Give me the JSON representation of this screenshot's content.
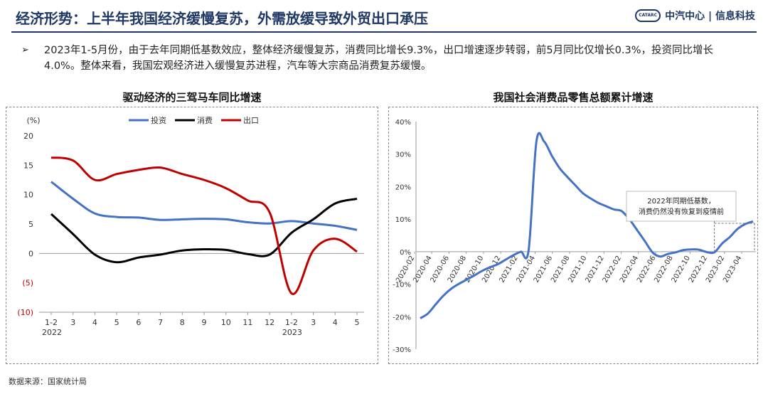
{
  "header": {
    "title": "经济形势：上半年我国经济缓慢复苏，外需放缓导致外贸出口承压",
    "brand": "中汽中心 | 信息科技",
    "logo_text": "CATARC"
  },
  "summary": {
    "bullet": "➢",
    "text": "2023年1-5月份，由于去年同期低基数效应，整体经济缓慢复苏，消费同比增长9.3%，出口增速逐步转弱，前5月同比仅增长0.3%，投资同比增长4.0%。整体来看，我国宏观经济进入缓慢复苏进程，汽车等大宗商品消费复苏缓慢。"
  },
  "source": "数据来源：国家统计局",
  "colors": {
    "investment": "#4472c4",
    "consumption": "#000000",
    "export": "#c00000",
    "retail": "#4472c4",
    "brand": "#1f3864"
  },
  "chart_data": [
    {
      "type": "line",
      "title": "驱动经济的三驾马车同比增速",
      "yunit": "(%)",
      "ylim": [
        -10,
        20
      ],
      "yticks": [
        20,
        15,
        10,
        5,
        0,
        -5,
        -10
      ],
      "ytick_labels": [
        "20",
        "15",
        "10",
        "5",
        "0",
        "(5)",
        "(10)"
      ],
      "categories": [
        "1-2",
        "3",
        "4",
        "5",
        "6",
        "7",
        "8",
        "9",
        "10",
        "11",
        "12",
        "1-2",
        "3",
        "4",
        "5"
      ],
      "year_labels": [
        {
          "index": 0,
          "label": "2022"
        },
        {
          "index": 11,
          "label": "2023"
        }
      ],
      "legend_position": "top",
      "grid": false,
      "series": [
        {
          "name": "投资",
          "values": [
            12.2,
            9.3,
            6.8,
            6.2,
            6.1,
            5.7,
            5.8,
            5.9,
            5.8,
            5.3,
            5.1,
            5.5,
            5.1,
            4.7,
            4.0
          ]
        },
        {
          "name": "消费",
          "values": [
            6.7,
            3.3,
            -0.2,
            -1.5,
            -0.7,
            -0.2,
            0.5,
            0.7,
            0.6,
            -0.1,
            -0.2,
            3.5,
            5.8,
            8.5,
            9.3
          ]
        },
        {
          "name": "出口",
          "values": [
            16.3,
            15.8,
            12.5,
            13.5,
            14.2,
            14.6,
            13.5,
            12.5,
            11.1,
            9.0,
            7.0,
            -6.8,
            0.5,
            2.5,
            0.3
          ]
        }
      ]
    },
    {
      "type": "line",
      "title": "我国社会消费品零售总额累计增速",
      "ylim": [
        -30,
        40
      ],
      "yticks": [
        40,
        30,
        20,
        10,
        0,
        -10,
        -20,
        -30
      ],
      "ytick_labels": [
        "40%",
        "30%",
        "20%",
        "10%",
        "0%",
        "-10%",
        "-20%",
        "-30%"
      ],
      "x_labels": [
        "2020-02",
        "2020-04",
        "2020-06",
        "2020-08",
        "2020-10",
        "2020-12",
        "2021-02",
        "2021-04",
        "2021-06",
        "2021-08",
        "2021-10",
        "2021-12",
        "2022-02",
        "2022-04",
        "2022-06",
        "2022-08",
        "2022-10",
        "2022-12",
        "2023-02",
        "2023-04"
      ],
      "grid": false,
      "annotation": "2022年同期低基数，消费仍然没有恢复到疫情前",
      "series": [
        {
          "name": "",
          "values": [
            -20.5,
            -19.0,
            -16.2,
            -13.5,
            -11.4,
            -9.9,
            -8.6,
            -7.3,
            -5.9,
            -4.8,
            -3.9,
            -2.5,
            -1.1,
            0.0,
            0.5,
            33.8,
            33.9,
            29.5,
            25.7,
            23.0,
            20.5,
            18.0,
            16.4,
            15.0,
            14.0,
            13.0,
            12.5,
            10.0,
            6.7,
            3.3,
            -0.2,
            -1.5,
            -0.7,
            -0.2,
            0.5,
            0.7,
            0.6,
            -0.1,
            -0.2,
            2.5,
            4.5,
            7.0,
            8.5,
            9.3
          ]
        }
      ]
    }
  ]
}
